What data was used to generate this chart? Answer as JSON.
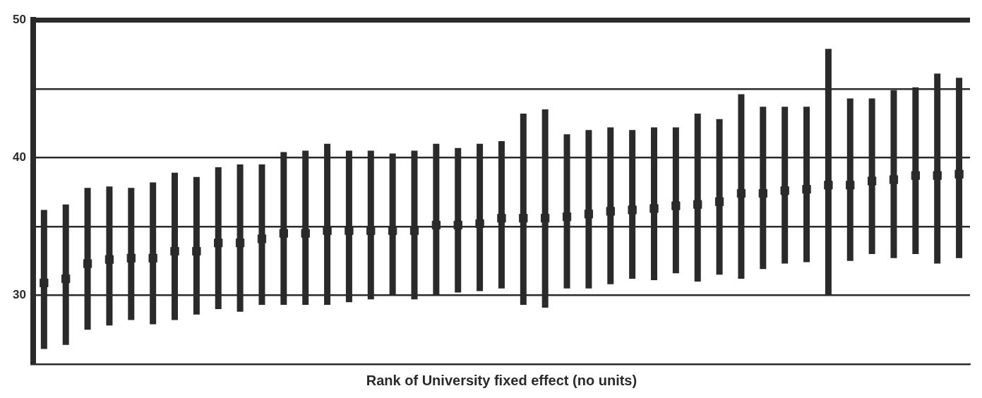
{
  "chart_data": {
    "type": "scatter",
    "xlabel": "Rank of University fixed effect (no units)",
    "categories": [
      null,
      null,
      null,
      null,
      null,
      null,
      null,
      null,
      null,
      null,
      null,
      null,
      null,
      null,
      null,
      null,
      null,
      null,
      null,
      null,
      null,
      null,
      null,
      null,
      null,
      null,
      null,
      null,
      null,
      null,
      null,
      null,
      null,
      null,
      null,
      null,
      null,
      null,
      null,
      null,
      null,
      null,
      null
    ],
    "series": [
      {
        "color": "#2a2a2a",
        "values": [
          30.9,
          31.2,
          32.3,
          32.6,
          32.7,
          32.7,
          33.2,
          33.2,
          33.8,
          33.8,
          34.1,
          34.5,
          34.5,
          34.7,
          34.7,
          34.7,
          34.7,
          34.7,
          35.1,
          35.1,
          35.2,
          35.6,
          35.6,
          35.6,
          35.7,
          35.9,
          36.1,
          36.2,
          36.3,
          36.5,
          36.6,
          36.8,
          37.4,
          37.4,
          37.6,
          37.7,
          38.0,
          38.0,
          38.3,
          38.4,
          38.7,
          38.7,
          38.8
        ],
        "errors": [
          [
            26.1,
            36.2
          ],
          [
            26.4,
            36.6
          ],
          [
            27.5,
            37.8
          ],
          [
            27.8,
            37.9
          ],
          [
            28.2,
            37.8
          ],
          [
            27.9,
            38.2
          ],
          [
            28.2,
            38.9
          ],
          [
            28.6,
            38.6
          ],
          [
            29.0,
            39.3
          ],
          [
            28.8,
            39.5
          ],
          [
            29.3,
            39.5
          ],
          [
            29.3,
            40.4
          ],
          [
            29.3,
            40.5
          ],
          [
            29.3,
            41.0
          ],
          [
            29.5,
            40.5
          ],
          [
            29.7,
            40.5
          ],
          [
            30.0,
            40.3
          ],
          [
            29.7,
            40.5
          ],
          [
            30.0,
            41.0
          ],
          [
            30.2,
            40.7
          ],
          [
            30.3,
            41.0
          ],
          [
            30.5,
            41.2
          ],
          [
            29.3,
            43.2
          ],
          [
            29.1,
            43.5
          ],
          [
            30.5,
            41.7
          ],
          [
            30.5,
            42.0
          ],
          [
            30.8,
            42.2
          ],
          [
            31.2,
            42.0
          ],
          [
            31.1,
            42.2
          ],
          [
            31.6,
            42.2
          ],
          [
            31.0,
            43.2
          ],
          [
            31.5,
            42.8
          ],
          [
            31.2,
            44.6
          ],
          [
            31.9,
            43.7
          ],
          [
            32.3,
            43.7
          ],
          [
            32.4,
            43.7
          ],
          [
            30.0,
            47.9
          ],
          [
            32.5,
            44.3
          ],
          [
            33.0,
            44.3
          ],
          [
            32.7,
            44.9
          ],
          [
            33.0,
            45.1
          ],
          [
            32.3,
            46.1
          ],
          [
            32.7,
            45.8
          ]
        ]
      }
    ],
    "ylim": [
      25,
      50
    ],
    "yticks": [
      {
        "value": 25,
        "label": null
      },
      30,
      {
        "value": 35,
        "label": null
      },
      40,
      {
        "value": 45,
        "label": null
      },
      50
    ],
    "grid": "y",
    "marker": "square",
    "tick_labels": "y"
  }
}
